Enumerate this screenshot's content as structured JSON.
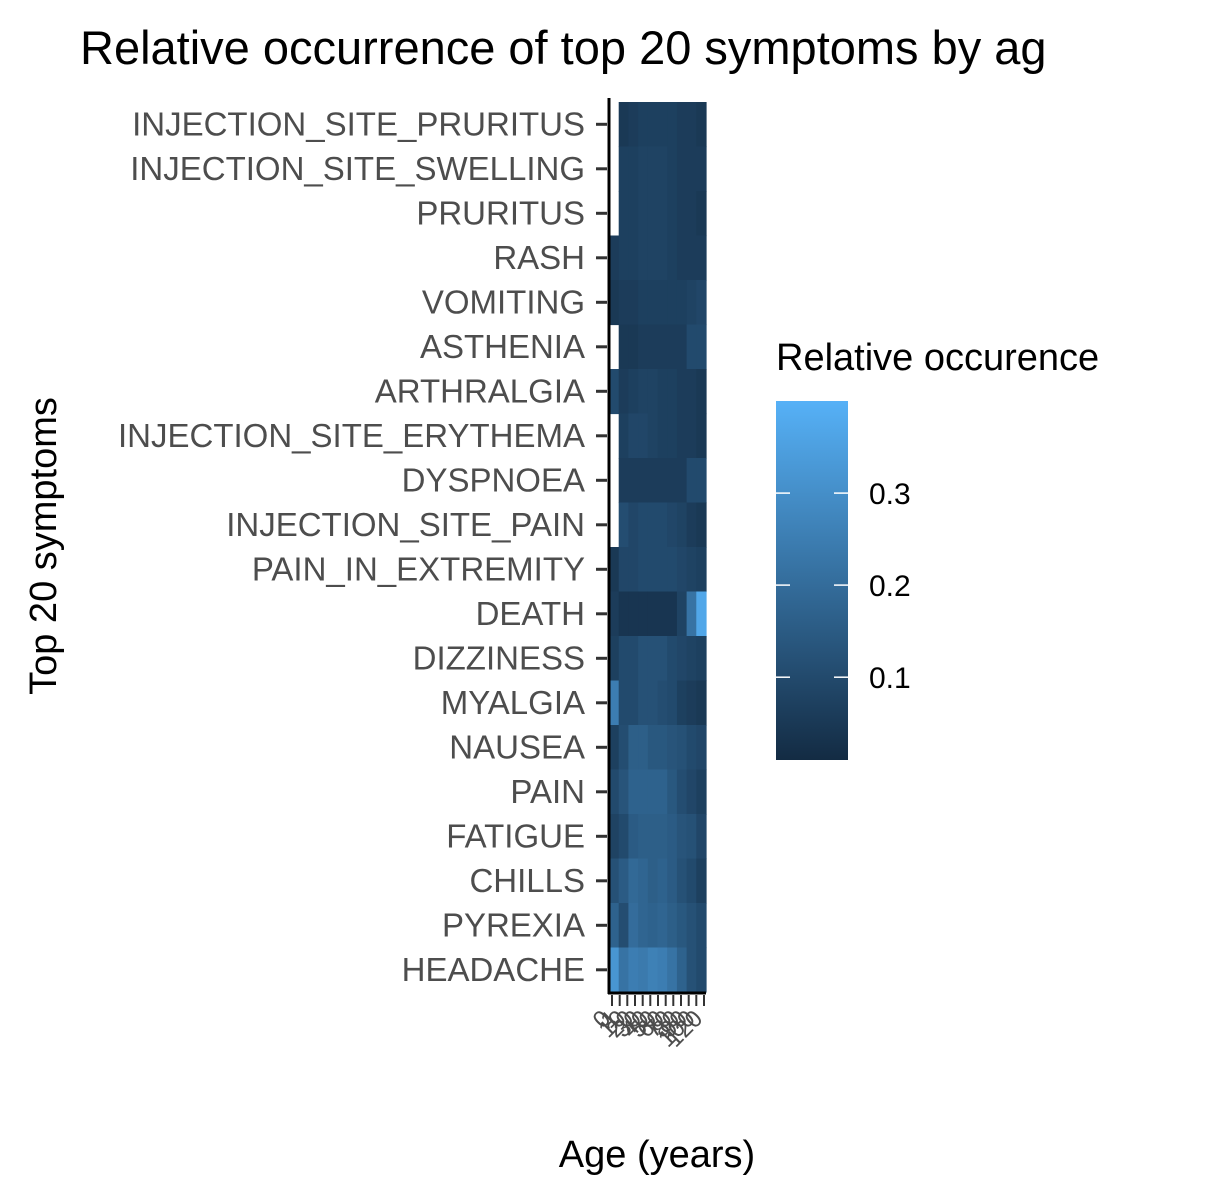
{
  "chart_data": {
    "type": "heatmap",
    "title": "Relative occurrence of top 20 symptoms by ag",
    "xlabel": "Age (years)",
    "ylabel": "Top 20 symptoms",
    "x_ticks": [
      "0",
      "1",
      "10",
      "20",
      "30",
      "40",
      "50",
      "60",
      "70",
      "80",
      "90",
      "100",
      "120"
    ],
    "rows": [
      "INJECTION_SITE_PRURITUS",
      "INJECTION_SITE_SWELLING",
      "PRURITUS",
      "RASH",
      "VOMITING",
      "ASTHENIA",
      "ARTHRALGIA",
      "INJECTION_SITE_ERYTHEMA",
      "DYSPNOEA",
      "INJECTION_SITE_PAIN",
      "PAIN_IN_EXTREMITY",
      "DEATH",
      "DIZZINESS",
      "MYALGIA",
      "NAUSEA",
      "PAIN",
      "FATIGUE",
      "CHILLS",
      "PYREXIA",
      "HEADACHE"
    ],
    "values": [
      [
        null,
        0.05,
        0.06,
        0.07,
        0.07,
        0.07,
        0.07,
        0.06,
        0.06,
        0.05
      ],
      [
        null,
        0.07,
        0.07,
        0.08,
        0.08,
        0.08,
        0.07,
        0.06,
        0.06,
        0.06
      ],
      [
        null,
        0.07,
        0.07,
        0.08,
        0.08,
        0.08,
        0.07,
        0.06,
        0.06,
        0.05
      ],
      [
        0.06,
        0.07,
        0.07,
        0.08,
        0.08,
        0.08,
        0.07,
        0.06,
        0.06,
        0.06
      ],
      [
        0.05,
        0.06,
        0.06,
        0.07,
        0.07,
        0.07,
        0.07,
        0.07,
        0.08,
        0.09
      ],
      [
        null,
        0.05,
        0.05,
        0.06,
        0.06,
        0.06,
        0.06,
        0.06,
        0.1,
        0.1
      ],
      [
        0.1,
        0.06,
        0.07,
        0.08,
        0.08,
        0.07,
        0.07,
        0.06,
        0.06,
        0.05
      ],
      [
        null,
        0.07,
        0.09,
        0.09,
        0.08,
        0.07,
        0.07,
        0.06,
        0.06,
        0.05
      ],
      [
        null,
        0.06,
        0.06,
        0.06,
        0.06,
        0.06,
        0.06,
        0.06,
        0.1,
        0.1
      ],
      [
        null,
        0.11,
        0.09,
        0.1,
        0.1,
        0.1,
        0.09,
        0.08,
        0.06,
        0.05
      ],
      [
        0.05,
        0.09,
        0.09,
        0.1,
        0.1,
        0.1,
        0.1,
        0.09,
        0.08,
        0.07
      ],
      [
        0.06,
        0.04,
        0.04,
        0.04,
        0.04,
        0.04,
        0.04,
        0.08,
        0.22,
        0.37
      ],
      [
        0.07,
        0.1,
        0.1,
        0.12,
        0.12,
        0.12,
        0.1,
        0.09,
        0.08,
        0.07
      ],
      [
        0.25,
        0.1,
        0.1,
        0.12,
        0.12,
        0.11,
        0.1,
        0.07,
        0.06,
        0.05
      ],
      [
        0.07,
        0.11,
        0.16,
        0.16,
        0.14,
        0.14,
        0.13,
        0.12,
        0.1,
        0.09
      ],
      [
        0.1,
        0.13,
        0.17,
        0.17,
        0.17,
        0.17,
        0.14,
        0.11,
        0.09,
        0.07
      ],
      [
        0.08,
        0.1,
        0.15,
        0.16,
        0.16,
        0.16,
        0.15,
        0.13,
        0.12,
        0.09
      ],
      [
        0.12,
        0.15,
        0.19,
        0.18,
        0.16,
        0.17,
        0.15,
        0.12,
        0.1,
        0.07
      ],
      [
        0.17,
        0.11,
        0.2,
        0.18,
        0.17,
        0.18,
        0.16,
        0.14,
        0.12,
        0.1
      ],
      [
        0.32,
        0.22,
        0.25,
        0.24,
        0.26,
        0.25,
        0.22,
        0.17,
        0.12,
        0.1
      ]
    ],
    "color_scale": {
      "low_color": "#132b43",
      "high_color": "#56b1f7",
      "min": 0.01,
      "max": 0.4
    },
    "legend": {
      "title": "Relative occurence",
      "placement": "right",
      "ticks": [
        {
          "value": 0.3,
          "label": "0.3"
        },
        {
          "value": 0.2,
          "label": "0.2"
        },
        {
          "value": 0.1,
          "label": "0.1"
        }
      ]
    },
    "grid": false
  }
}
